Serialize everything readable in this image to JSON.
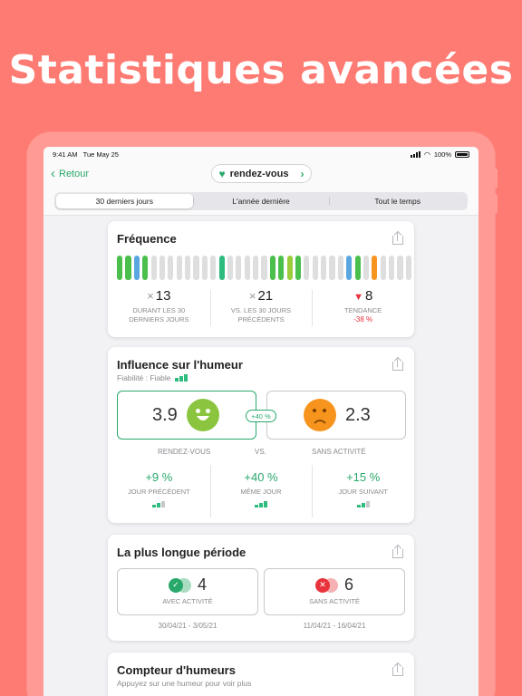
{
  "headline": "Statistiques avancées",
  "status_bar": {
    "time": "9:41 AM",
    "date": "Tue May 25",
    "battery": "100%"
  },
  "nav": {
    "back_label": "Retour",
    "activity_label": "rendez-vous"
  },
  "tabs": [
    {
      "label": "30 derniers jours",
      "active": true
    },
    {
      "label": "L'année dernière",
      "active": false
    },
    {
      "label": "Tout le temps",
      "active": false
    }
  ],
  "colors": {
    "accent": "#28a96b",
    "negative": "#e8323c",
    "background": "#fe7b73"
  },
  "frequency": {
    "title": "Fréquence",
    "bar_colors": [
      "#4bbf4b",
      "#4bbf4b",
      "#5aa7e0",
      "#4bbf4b",
      "#dedede",
      "#dedede",
      "#dedede",
      "#dedede",
      "#dedede",
      "#dedede",
      "#dedede",
      "#dedede",
      "#2dbb7e",
      "#dedede",
      "#dedede",
      "#dedede",
      "#dedede",
      "#dedede",
      "#4bbf4b",
      "#4bbf4b",
      "#9ccc3c",
      "#4bbf4b",
      "#dedede",
      "#dedede",
      "#dedede",
      "#dedede",
      "#dedede",
      "#5aa7e0",
      "#4bbf4b",
      "#dedede",
      "#f7941d",
      "#dedede",
      "#dedede",
      "#dedede",
      "#dedede"
    ],
    "stats": [
      {
        "prefix": "×",
        "value": "13",
        "label": "DURANT LES 30 DERNIERS JOURS",
        "sub": ""
      },
      {
        "prefix": "×",
        "value": "21",
        "label": "VS. LES 30 JOURS PRÉCÉDENTS",
        "sub": ""
      },
      {
        "prefix": "▼",
        "value": "8",
        "label": "TENDANCE",
        "sub": "-38 %"
      }
    ]
  },
  "mood_influence": {
    "title": "Influence sur l'humeur",
    "reliability": "Fiabilité : Fiable",
    "with_value": "3.9",
    "without_value": "2.3",
    "diff": "+40 %",
    "with_label": "RENDEZ-VOUS",
    "vs_label": "VS.",
    "without_label": "SANS ACTIVITÉ",
    "days": [
      {
        "value": "+9 %",
        "label": "JOUR PRÉCÉDENT"
      },
      {
        "value": "+40 %",
        "label": "MÊME JOUR"
      },
      {
        "value": "+15 %",
        "label": "JOUR SUIVANT"
      }
    ]
  },
  "longest_streak": {
    "title": "La plus longue période",
    "with": {
      "value": "4",
      "label": "AVEC ACTIVITÉ",
      "dates": "30/04/21 - 3/05/21"
    },
    "without": {
      "value": "6",
      "label": "SANS ACTIVITÉ",
      "dates": "11/04/21 - 16/04/21"
    }
  },
  "mood_counter": {
    "title": "Compteur d'humeurs",
    "subtitle": "Appuyez sur une humeur pour voir plus"
  }
}
